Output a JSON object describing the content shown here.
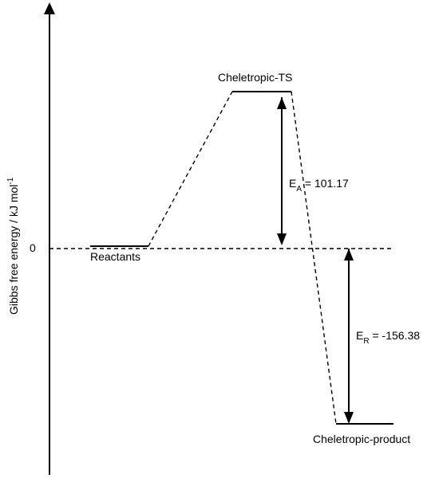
{
  "y_axis_label": {
    "text": "Gibbs free energy / kJ mol",
    "superscript": "-1"
  },
  "zero_tick": "0",
  "states": {
    "reactants": "Reactants",
    "ts": "Cheletropic-TS",
    "product": "Cheletropic-product"
  },
  "ea_label": {
    "main": "E",
    "sub": "A",
    "value": " = 101.17"
  },
  "er_label": {
    "main": "E",
    "sub": "R",
    "value": " = -156.38"
  },
  "energies_kJ_per_mol": {
    "reactants": 0,
    "ts": 101.17,
    "product": -156.38
  },
  "colors": {
    "line": "#000000",
    "background": "#ffffff"
  }
}
